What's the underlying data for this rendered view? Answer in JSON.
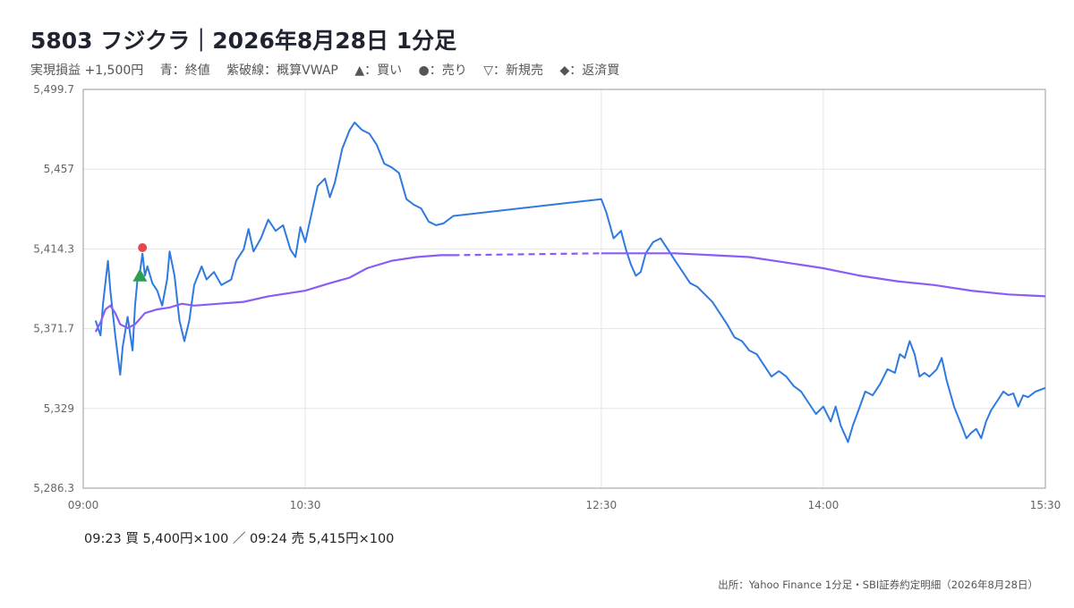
{
  "header": {
    "title": "5803 フジクラ｜2026年8月28日 1分足",
    "subtitle": {
      "pnl": "実現損益 +1,500円",
      "legend_close": "青：終値",
      "legend_vwap": "紫破線：概算VWAP",
      "legend_buy": "▲：買い",
      "legend_sell": "●：売り",
      "legend_short": "▽：新規売",
      "legend_cover": "◆：返済買"
    }
  },
  "trades_text": "09:23 買 5,400円×100 ／ 09:24 売 5,415円×100",
  "source_text": "出所：Yahoo Finance 1分足・SBI証券約定明細（2026年8月28日）",
  "colors": {
    "close": "#2f7ae0",
    "vwap": "#8b5cf6",
    "buy": "#2e9e55",
    "sell": "#e5484d",
    "grid": "#e6e6e6",
    "axis": "#9a9a9a"
  },
  "chart_data": {
    "type": "line",
    "title": "5803 フジクラ｜2026年8月28日 1分足",
    "xlabel": "",
    "ylabel": "",
    "x_ticks": [
      "09:00",
      "10:30",
      "12:30",
      "14:00",
      "15:30"
    ],
    "y_ticks": [
      "5,286.3",
      "5,329",
      "5,371.7",
      "5,414.3",
      "5,457",
      "5,499.7"
    ],
    "ylim": [
      5286.3,
      5499.7
    ],
    "xlim": [
      "09:00",
      "15:30"
    ],
    "grid": true,
    "series": [
      {
        "name": "終値",
        "style": "solid",
        "points": [
          [
            "09:05",
            5376
          ],
          [
            "09:07",
            5368
          ],
          [
            "09:08",
            5385
          ],
          [
            "09:10",
            5408
          ],
          [
            "09:11",
            5392
          ],
          [
            "09:13",
            5368
          ],
          [
            "09:15",
            5347
          ],
          [
            "09:16",
            5362
          ],
          [
            "09:18",
            5378
          ],
          [
            "09:20",
            5360
          ],
          [
            "09:21",
            5384
          ],
          [
            "09:22",
            5398
          ],
          [
            "09:23",
            5402
          ],
          [
            "09:24",
            5412
          ],
          [
            "09:25",
            5400
          ],
          [
            "09:26",
            5405
          ],
          [
            "09:28",
            5396
          ],
          [
            "09:30",
            5392
          ],
          [
            "09:32",
            5384
          ],
          [
            "09:34",
            5398
          ],
          [
            "09:35",
            5413
          ],
          [
            "09:37",
            5400
          ],
          [
            "09:39",
            5376
          ],
          [
            "09:41",
            5365
          ],
          [
            "09:43",
            5376
          ],
          [
            "09:45",
            5395
          ],
          [
            "09:48",
            5405
          ],
          [
            "09:50",
            5398
          ],
          [
            "09:53",
            5402
          ],
          [
            "09:56",
            5395
          ],
          [
            "10:00",
            5398
          ],
          [
            "10:02",
            5408
          ],
          [
            "10:05",
            5414
          ],
          [
            "10:07",
            5425
          ],
          [
            "10:09",
            5413
          ],
          [
            "10:12",
            5420
          ],
          [
            "10:15",
            5430
          ],
          [
            "10:18",
            5424
          ],
          [
            "10:21",
            5427
          ],
          [
            "10:24",
            5414
          ],
          [
            "10:26",
            5410
          ],
          [
            "10:28",
            5426
          ],
          [
            "10:30",
            5418
          ],
          [
            "10:32",
            5430
          ],
          [
            "10:35",
            5448
          ],
          [
            "10:38",
            5452
          ],
          [
            "10:40",
            5442
          ],
          [
            "10:42",
            5450
          ],
          [
            "10:45",
            5468
          ],
          [
            "10:48",
            5478
          ],
          [
            "10:50",
            5482
          ],
          [
            "10:53",
            5478
          ],
          [
            "10:56",
            5476
          ],
          [
            "10:59",
            5470
          ],
          [
            "11:02",
            5460
          ],
          [
            "11:05",
            5458
          ],
          [
            "11:08",
            5455
          ],
          [
            "11:11",
            5441
          ],
          [
            "11:14",
            5438
          ],
          [
            "11:17",
            5436
          ],
          [
            "11:20",
            5429
          ],
          [
            "11:23",
            5427
          ],
          [
            "11:26",
            5428
          ],
          [
            "11:30",
            5432
          ],
          [
            "12:30",
            5441
          ],
          [
            "12:32",
            5434
          ],
          [
            "12:35",
            5420
          ],
          [
            "12:38",
            5424
          ],
          [
            "12:40",
            5414
          ],
          [
            "12:42",
            5406
          ],
          [
            "12:44",
            5400
          ],
          [
            "12:46",
            5402
          ],
          [
            "12:48",
            5412
          ],
          [
            "12:51",
            5418
          ],
          [
            "12:54",
            5420
          ],
          [
            "12:57",
            5414
          ],
          [
            "13:00",
            5408
          ],
          [
            "13:03",
            5402
          ],
          [
            "13:06",
            5396
          ],
          [
            "13:09",
            5394
          ],
          [
            "13:12",
            5390
          ],
          [
            "13:15",
            5386
          ],
          [
            "13:18",
            5380
          ],
          [
            "13:21",
            5374
          ],
          [
            "13:24",
            5367
          ],
          [
            "13:27",
            5365
          ],
          [
            "13:30",
            5360
          ],
          [
            "13:33",
            5358
          ],
          [
            "13:36",
            5352
          ],
          [
            "13:39",
            5346
          ],
          [
            "13:42",
            5349
          ],
          [
            "13:45",
            5346
          ],
          [
            "13:48",
            5341
          ],
          [
            "13:51",
            5338
          ],
          [
            "13:54",
            5332
          ],
          [
            "13:57",
            5326
          ],
          [
            "14:00",
            5330
          ],
          [
            "14:03",
            5322
          ],
          [
            "14:05",
            5330
          ],
          [
            "14:07",
            5320
          ],
          [
            "14:10",
            5311
          ],
          [
            "14:12",
            5320
          ],
          [
            "14:14",
            5327
          ],
          [
            "14:17",
            5338
          ],
          [
            "14:20",
            5336
          ],
          [
            "14:23",
            5342
          ],
          [
            "14:26",
            5350
          ],
          [
            "14:29",
            5348
          ],
          [
            "14:31",
            5358
          ],
          [
            "14:33",
            5356
          ],
          [
            "14:35",
            5365
          ],
          [
            "14:37",
            5358
          ],
          [
            "14:39",
            5346
          ],
          [
            "14:41",
            5348
          ],
          [
            "14:43",
            5346
          ],
          [
            "14:46",
            5350
          ],
          [
            "14:48",
            5356
          ],
          [
            "14:50",
            5344
          ],
          [
            "14:53",
            5330
          ],
          [
            "14:56",
            5320
          ],
          [
            "14:58",
            5313
          ],
          [
            "15:00",
            5316
          ],
          [
            "15:02",
            5318
          ],
          [
            "15:04",
            5313
          ],
          [
            "15:06",
            5322
          ],
          [
            "15:08",
            5328
          ],
          [
            "15:10",
            5332
          ],
          [
            "15:13",
            5338
          ],
          [
            "15:15",
            5336
          ],
          [
            "15:17",
            5337
          ],
          [
            "15:19",
            5330
          ],
          [
            "15:21",
            5336
          ],
          [
            "15:23",
            5335
          ],
          [
            "15:26",
            5338
          ],
          [
            "15:28",
            5339
          ],
          [
            "15:30",
            5340
          ]
        ]
      },
      {
        "name": "概算VWAP",
        "style": "solid-with-dashed-lunch",
        "points": [
          [
            "09:05",
            5370
          ],
          [
            "09:07",
            5375
          ],
          [
            "09:09",
            5382
          ],
          [
            "09:11",
            5384
          ],
          [
            "09:13",
            5380
          ],
          [
            "09:15",
            5374
          ],
          [
            "09:18",
            5372
          ],
          [
            "09:21",
            5374
          ],
          [
            "09:25",
            5380
          ],
          [
            "09:30",
            5382
          ],
          [
            "09:35",
            5383
          ],
          [
            "09:40",
            5385
          ],
          [
            "09:45",
            5384
          ],
          [
            "09:55",
            5385
          ],
          [
            "10:05",
            5386
          ],
          [
            "10:15",
            5389
          ],
          [
            "10:30",
            5392
          ],
          [
            "10:40",
            5396
          ],
          [
            "10:48",
            5399
          ],
          [
            "10:55",
            5404
          ],
          [
            "11:05",
            5408
          ],
          [
            "11:15",
            5410
          ],
          [
            "11:25",
            5411
          ],
          [
            "11:30",
            5411
          ],
          [
            "12:30",
            5412
          ],
          [
            "12:45",
            5412
          ],
          [
            "13:00",
            5412
          ],
          [
            "13:15",
            5411
          ],
          [
            "13:30",
            5410
          ],
          [
            "13:45",
            5407
          ],
          [
            "14:00",
            5404
          ],
          [
            "14:15",
            5400
          ],
          [
            "14:30",
            5397
          ],
          [
            "14:45",
            5395
          ],
          [
            "15:00",
            5392
          ],
          [
            "15:15",
            5390
          ],
          [
            "15:30",
            5389
          ]
        ]
      }
    ],
    "markers": [
      {
        "type": "buy",
        "time": "09:23",
        "price": 5400
      },
      {
        "type": "sell",
        "time": "09:24",
        "price": 5415
      }
    ]
  }
}
